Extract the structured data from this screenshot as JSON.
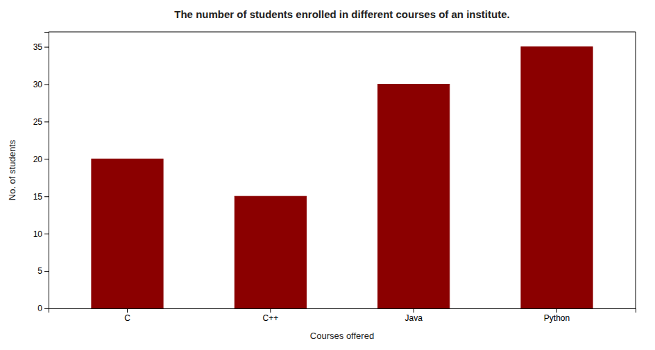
{
  "chart_data": {
    "type": "bar",
    "title": "The number of students enrolled in different courses of an institute.",
    "xlabel": "Courses offered",
    "ylabel": "No. of students",
    "categories": [
      "C",
      "C++",
      "Java",
      "Python"
    ],
    "values": [
      20,
      15,
      30,
      35
    ],
    "color": "#8B0000",
    "ylim": [
      0,
      37
    ],
    "yticks": [
      0,
      5,
      10,
      15,
      20,
      25,
      30,
      35
    ]
  }
}
